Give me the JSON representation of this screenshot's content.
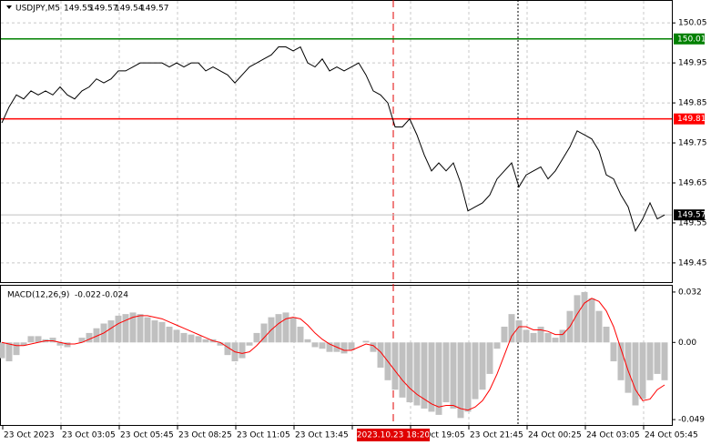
{
  "chart_data": [
    {
      "type": "line",
      "title": "USDJPY,M5",
      "ohlc": [
        149.55,
        149.57,
        149.54,
        149.57
      ],
      "color": "#000000",
      "grid": true,
      "ylim": [
        149.402,
        150.105
      ],
      "yticks": [
        150.05,
        149.95,
        149.85,
        149.75,
        149.65,
        149.55,
        149.45
      ],
      "levels": [
        {
          "value": 150.01,
          "color": "#008000"
        },
        {
          "value": 149.81,
          "color": "#ff0000"
        },
        {
          "value": 149.57,
          "color": "#000000"
        }
      ],
      "time_labels": [
        "23 Oct 2023",
        "23 Oct 03:05",
        "23 Oct 05:45",
        "23 Oct 08:25",
        "23 Oct 11:05",
        "23 Oct 13:45",
        "",
        "23 Oct 19:05",
        "23 Oct 21:45",
        "24 Oct 00:25",
        "24 Oct 03:05",
        "24 Oct 05:45"
      ],
      "cursor_label": "2023.10.23 18:20",
      "values": [
        149.8,
        149.84,
        149.87,
        149.86,
        149.88,
        149.87,
        149.88,
        149.87,
        149.89,
        149.87,
        149.86,
        149.88,
        149.89,
        149.91,
        149.9,
        149.91,
        149.93,
        149.93,
        149.94,
        149.95,
        149.95,
        149.95,
        149.95,
        149.94,
        149.95,
        149.94,
        149.95,
        149.95,
        149.93,
        149.94,
        149.93,
        149.92,
        149.9,
        149.92,
        149.94,
        149.95,
        149.96,
        149.97,
        149.99,
        149.99,
        149.98,
        149.99,
        149.95,
        149.94,
        149.96,
        149.93,
        149.94,
        149.93,
        149.94,
        149.95,
        149.92,
        149.88,
        149.87,
        149.85,
        149.79,
        149.79,
        149.81,
        149.77,
        149.72,
        149.68,
        149.7,
        149.68,
        149.7,
        149.65,
        149.58,
        149.59,
        149.6,
        149.62,
        149.66,
        149.68,
        149.7,
        149.64,
        149.67,
        149.68,
        149.69,
        149.66,
        149.68,
        149.71,
        149.74,
        149.78,
        149.77,
        149.76,
        149.73,
        149.67,
        149.66,
        149.62,
        149.59,
        149.53,
        149.56,
        149.6,
        149.56,
        149.57
      ]
    },
    {
      "type": "macd",
      "title": "MACD(12,26,9)",
      "readout": [
        -0.022,
        -0.024
      ],
      "ylim": [
        -0.053,
        0.036
      ],
      "yticks": [
        0.032,
        {
          "value": 0,
          "label": "0.00"
        },
        -0.049
      ],
      "series": [
        {
          "color": "#c0c0c0",
          "values": [
            -0.01,
            -0.012,
            -0.008,
            -0.002,
            0.004,
            0.004,
            0.002,
            0.003,
            -0.002,
            -0.003,
            0.0,
            0.003,
            0.006,
            0.009,
            0.012,
            0.014,
            0.017,
            0.018,
            0.019,
            0.018,
            0.016,
            0.014,
            0.013,
            0.01,
            0.008,
            0.006,
            0.005,
            0.004,
            0.002,
            0.002,
            -0.002,
            -0.008,
            -0.012,
            -0.01,
            -0.002,
            0.006,
            0.012,
            0.016,
            0.018,
            0.019,
            0.016,
            0.01,
            0.002,
            -0.003,
            -0.004,
            -0.006,
            -0.006,
            -0.007,
            -0.005,
            0.0,
            0.001,
            -0.006,
            -0.016,
            -0.024,
            -0.03,
            -0.035,
            -0.038,
            -0.04,
            -0.042,
            -0.044,
            -0.046,
            -0.038,
            -0.042,
            -0.048,
            -0.044,
            -0.036,
            -0.03,
            -0.02,
            -0.004,
            0.01,
            0.018,
            0.014,
            0.008,
            0.006,
            0.01,
            0.006,
            0.003,
            0.008,
            0.02,
            0.03,
            0.032,
            0.028,
            0.02,
            0.01,
            -0.012,
            -0.024,
            -0.032,
            -0.04,
            -0.036,
            -0.024,
            -0.02,
            -0.024
          ]
        },
        {
          "color": "#ff0000",
          "values": [
            0.0,
            -0.001,
            -0.002,
            -0.002,
            -0.001,
            0.0,
            0.001,
            0.001,
            0.0,
            -0.001,
            -0.001,
            0.0,
            0.002,
            0.004,
            0.006,
            0.009,
            0.012,
            0.014,
            0.016,
            0.017,
            0.017,
            0.016,
            0.015,
            0.013,
            0.011,
            0.009,
            0.007,
            0.005,
            0.003,
            0.001,
            0.0,
            -0.003,
            -0.006,
            -0.007,
            -0.006,
            -0.002,
            0.003,
            0.008,
            0.012,
            0.015,
            0.016,
            0.015,
            0.011,
            0.006,
            0.002,
            -0.001,
            -0.003,
            -0.005,
            -0.005,
            -0.003,
            -0.001,
            -0.002,
            -0.006,
            -0.012,
            -0.018,
            -0.024,
            -0.029,
            -0.033,
            -0.036,
            -0.039,
            -0.041,
            -0.04,
            -0.04,
            -0.042,
            -0.043,
            -0.041,
            -0.037,
            -0.03,
            -0.02,
            -0.008,
            0.004,
            0.01,
            0.01,
            0.008,
            0.008,
            0.007,
            0.005,
            0.005,
            0.01,
            0.018,
            0.025,
            0.028,
            0.026,
            0.02,
            0.01,
            -0.004,
            -0.018,
            -0.03,
            -0.037,
            -0.036,
            -0.03,
            -0.027
          ]
        }
      ]
    }
  ]
}
